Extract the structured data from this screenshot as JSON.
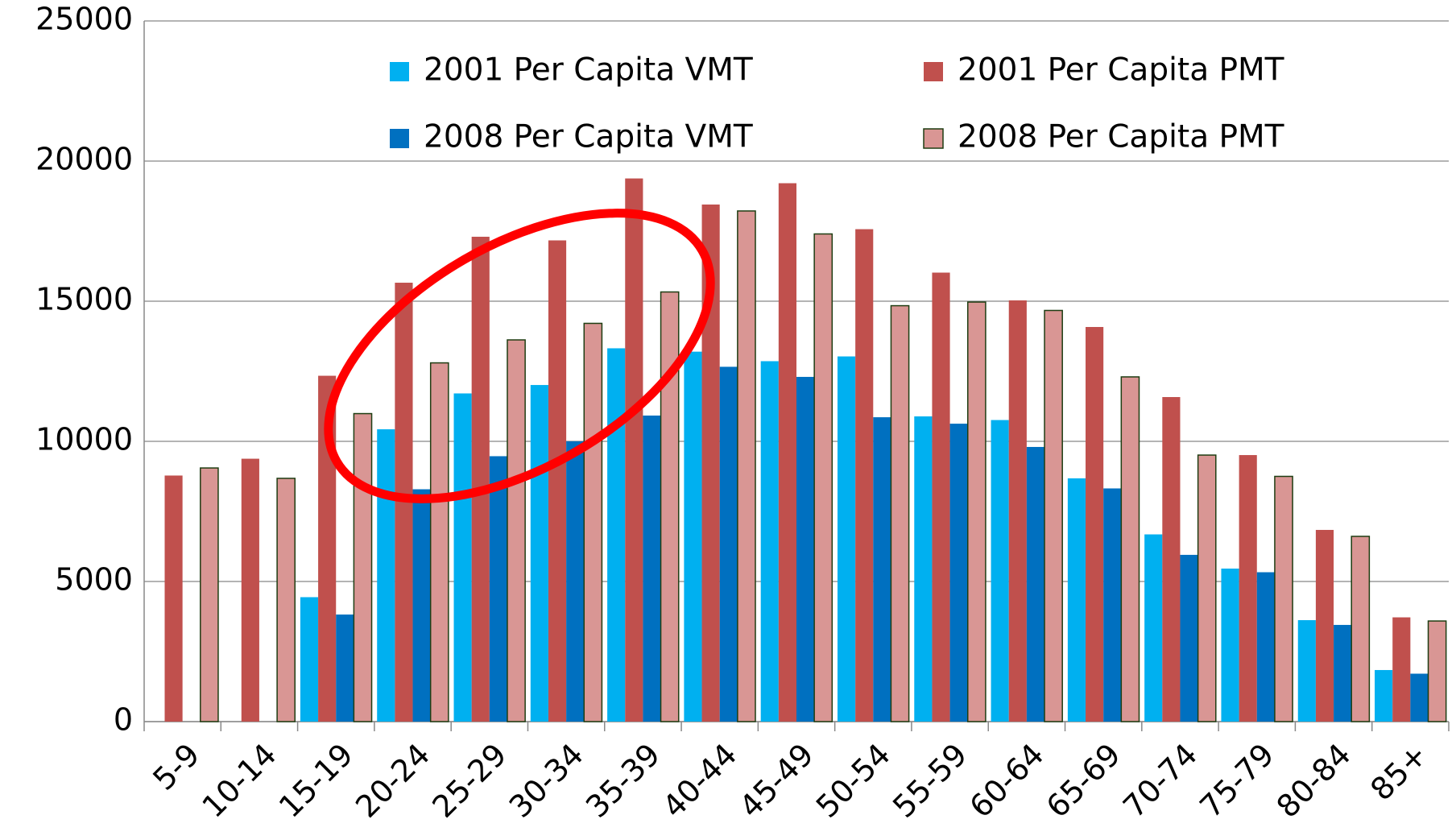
{
  "chart_data": {
    "type": "bar",
    "categories": [
      "5-9",
      "10-14",
      "15-19",
      "20-24",
      "25-29",
      "30-34",
      "35-39",
      "40-44",
      "45-49",
      "50-54",
      "55-59",
      "60-64",
      "65-69",
      "70-74",
      "75-79",
      "80-84",
      "85+"
    ],
    "series": [
      {
        "name": "2001 Per Capita VMT",
        "color": "#00b0f0",
        "values": [
          null,
          null,
          4440,
          10430,
          11710,
          12010,
          13320,
          13200,
          12860,
          13030,
          10890,
          10760,
          8680,
          6680,
          5460,
          3620,
          1840
        ]
      },
      {
        "name": "2001 Per Capita PMT",
        "color": "#c0504d",
        "values": [
          8780,
          9380,
          12340,
          15660,
          17300,
          17170,
          19380,
          18450,
          19210,
          17570,
          16020,
          15030,
          14080,
          11580,
          9510,
          6840,
          3720
        ]
      },
      {
        "name": "2008 Per Capita VMT",
        "color": "#0070c0",
        "values": [
          null,
          null,
          3820,
          8290,
          9470,
          10000,
          10920,
          12660,
          12300,
          10860,
          10630,
          9800,
          8320,
          5950,
          5330,
          3450,
          1710
        ]
      },
      {
        "name": "2008 Per Capita PMT",
        "color": "#d99694",
        "edgecolor": "#1e3d12",
        "values": [
          9050,
          8680,
          10990,
          12800,
          13620,
          14210,
          15330,
          18220,
          17400,
          14840,
          14970,
          14670,
          12300,
          9510,
          8750,
          6610,
          3590
        ]
      }
    ],
    "ylim": [
      0,
      25000
    ],
    "yticks": [
      0,
      5000,
      10000,
      15000,
      20000,
      25000
    ],
    "grid": true
  }
}
